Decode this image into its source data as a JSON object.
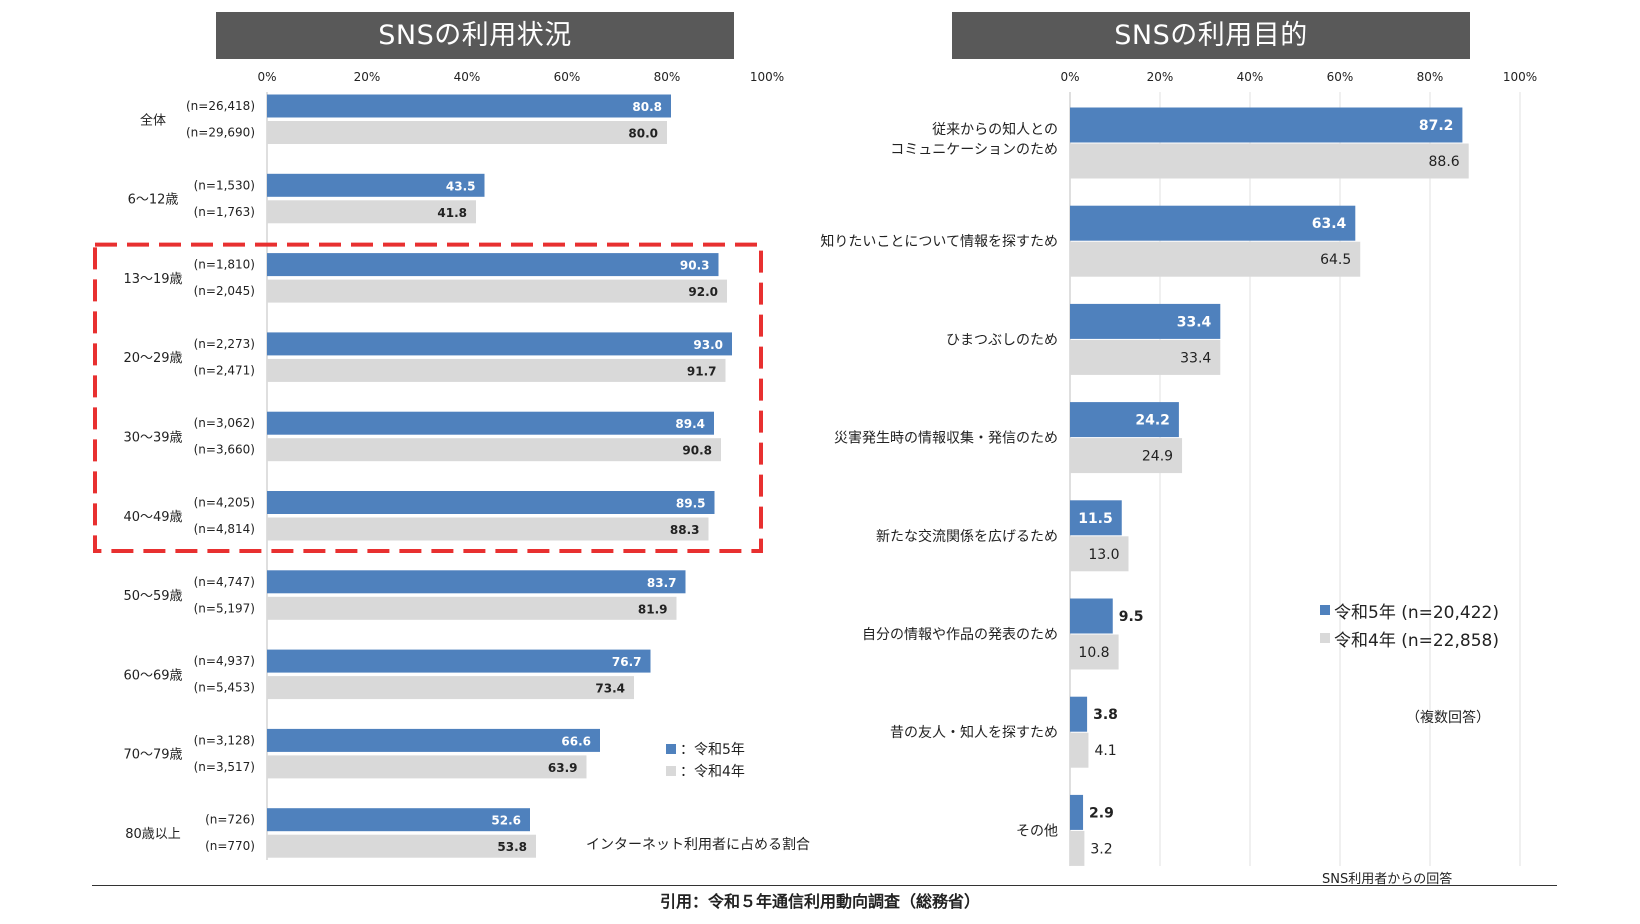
{
  "titles": {
    "left": "SNSの利用状況",
    "right": "SNSの利用目的"
  },
  "colors": {
    "series_r5": "#4f81bd",
    "series_r4": "#d9d9d9",
    "highlight": "#e83030",
    "title_bg": "#595959"
  },
  "legend_left": {
    "r5": "：令和5年",
    "r4": "：令和4年"
  },
  "legend_right": {
    "r5": "令和5年 (n=20,422)",
    "r4": "令和4年 (n=22,858)"
  },
  "notes": {
    "left": "インターネット利用者に占める割合",
    "right_multi": "（複数回答）",
    "right_resp": "SNS利用者からの回答"
  },
  "citation": "引用：令和５年通信利用動向調査（総務省）",
  "chart_data": [
    {
      "type": "bar",
      "orientation": "horizontal",
      "title": "SNSの利用状況",
      "xlim": [
        0,
        100
      ],
      "x_ticks": [
        "0%",
        "20%",
        "40%",
        "60%",
        "80%",
        "100%"
      ],
      "categories": [
        "全体",
        "6～12歳",
        "13～19歳",
        "20～29歳",
        "30～39歳",
        "40～49歳",
        "50～59歳",
        "60～69歳",
        "70～79歳",
        "80歳以上"
      ],
      "n_labels": {
        "r5": [
          "(n=26,418)",
          "(n=1,530)",
          "(n=1,810)",
          "(n=2,273)",
          "(n=3,062)",
          "(n=4,205)",
          "(n=4,747)",
          "(n=4,937)",
          "(n=3,128)",
          "(n=726)"
        ],
        "r4": [
          "(n=29,690)",
          "(n=1,763)",
          "(n=2,045)",
          "(n=2,471)",
          "(n=3,660)",
          "(n=4,814)",
          "(n=5,197)",
          "(n=5,453)",
          "(n=3,517)",
          "(n=770)"
        ]
      },
      "series": [
        {
          "name": "令和5年",
          "values": [
            80.8,
            43.5,
            90.3,
            93.0,
            89.4,
            89.5,
            83.7,
            76.7,
            66.6,
            52.6
          ]
        },
        {
          "name": "令和4年",
          "values": [
            80.0,
            41.8,
            92.0,
            91.7,
            90.8,
            88.3,
            81.9,
            73.4,
            63.9,
            53.8
          ]
        }
      ],
      "highlighted_categories": [
        "13～19歳",
        "20～29歳",
        "30～39歳",
        "40～49歳"
      ],
      "grid": false
    },
    {
      "type": "bar",
      "orientation": "horizontal",
      "title": "SNSの利用目的",
      "xlim": [
        0,
        100
      ],
      "x_ticks": [
        "0%",
        "20%",
        "40%",
        "60%",
        "80%",
        "100%"
      ],
      "categories": [
        [
          "従来からの知人との",
          "コミュニケーションのため"
        ],
        [
          "知りたいことについて情報を探すため"
        ],
        [
          "ひまつぶしのため"
        ],
        [
          "災害発生時の情報収集・発信のため"
        ],
        [
          "新たな交流関係を広げるため"
        ],
        [
          "自分の情報や作品の発表のため"
        ],
        [
          "昔の友人・知人を探すため"
        ],
        [
          "その他"
        ]
      ],
      "series": [
        {
          "name": "令和5年 (n=20,422)",
          "values": [
            87.2,
            63.4,
            33.4,
            24.2,
            11.5,
            9.5,
            3.8,
            2.9
          ]
        },
        {
          "name": "令和4年 (n=22,858)",
          "values": [
            88.6,
            64.5,
            33.4,
            24.9,
            13.0,
            10.8,
            4.1,
            3.2
          ]
        }
      ],
      "grid": true
    }
  ]
}
